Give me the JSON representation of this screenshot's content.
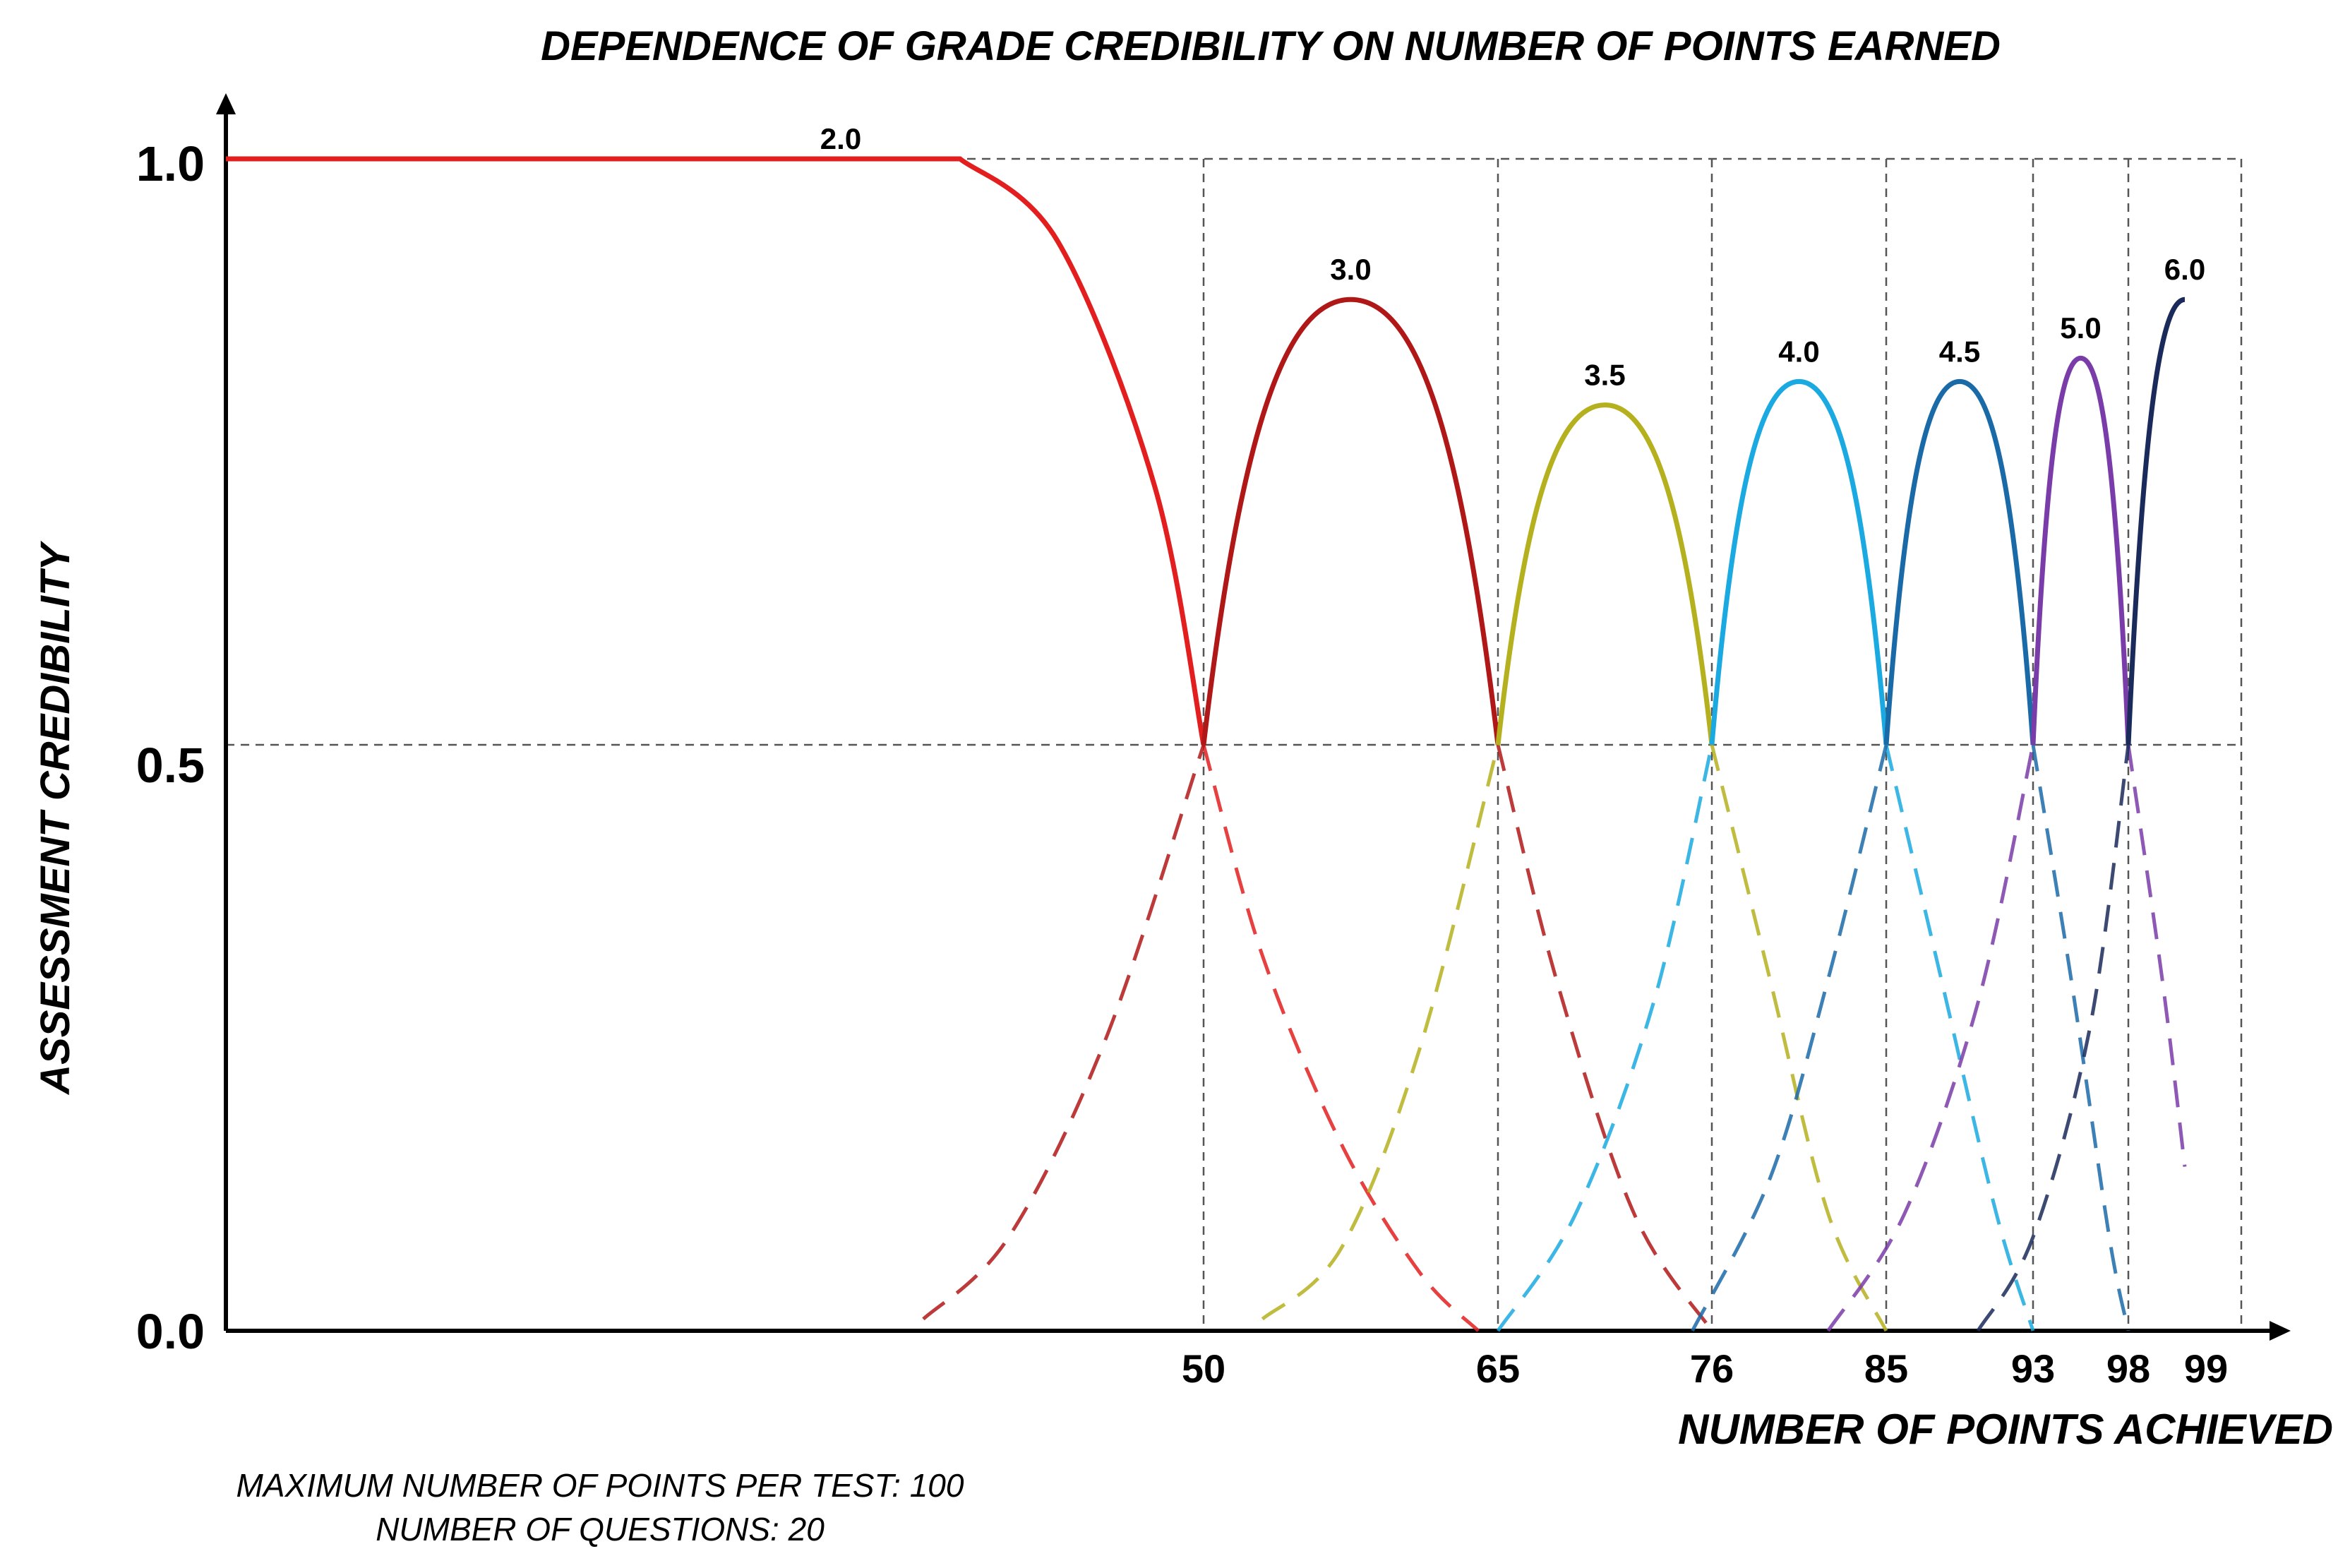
{
  "chart_data": {
    "type": "line",
    "title": "DEPENDENCE OF GRADE CREDIBILITY ON NUMBER OF POINTS EARNED",
    "xlabel": "NUMBER OF POINTS ACHIEVED",
    "ylabel": "ASSESSMENT CREDIBILITY",
    "y_ticks": [
      "1.0",
      "0.5",
      "0.0"
    ],
    "x_ticks": [
      "50",
      "65",
      "76",
      "85",
      "93",
      "98",
      "99"
    ],
    "ylim": [
      0,
      1
    ],
    "grid": "dashed at grade boundaries and y = 0.5, 1.0",
    "series": [
      {
        "name": "2.0",
        "color": "#e31e1e",
        "solid_x": [
          0,
          40,
          44,
          48,
          50
        ],
        "solid_y": [
          1.0,
          1.0,
          0.93,
          0.72,
          0.5
        ],
        "dashed_x": [
          50,
          53,
          57,
          61,
          64
        ],
        "dashed_y": [
          0.5,
          0.32,
          0.16,
          0.05,
          0.0
        ]
      },
      {
        "name": "3.0",
        "color": "#b01818",
        "peak_x": 57.5,
        "peak_y": 0.88,
        "left_x": 50,
        "right_x": 65,
        "dashed_left_x": [
          38,
          42,
          46,
          50
        ],
        "dashed_left_y": [
          0.01,
          0.08,
          0.25,
          0.5
        ],
        "dashed_right_x": [
          65,
          68,
          72,
          76
        ],
        "dashed_right_y": [
          0.5,
          0.3,
          0.1,
          0.0
        ]
      },
      {
        "name": "3.5",
        "color": "#b5b01e",
        "peak_x": 70.5,
        "peak_y": 0.79,
        "left_x": 65,
        "right_x": 76,
        "dashed_left_x": [
          53,
          57,
          61,
          65
        ],
        "dashed_left_y": [
          0.01,
          0.07,
          0.24,
          0.5
        ],
        "dashed_right_x": [
          76,
          79,
          82,
          85
        ],
        "dashed_right_y": [
          0.5,
          0.3,
          0.1,
          0.0
        ]
      },
      {
        "name": "4.0",
        "color": "#1aa9e0",
        "peak_x": 80.5,
        "peak_y": 0.81,
        "left_x": 76,
        "right_x": 85,
        "dashed_left_x": [
          65,
          69,
          73,
          76
        ],
        "dashed_left_y": [
          0.0,
          0.1,
          0.28,
          0.5
        ],
        "dashed_right_x": [
          85,
          88,
          91,
          93
        ],
        "dashed_right_y": [
          0.5,
          0.3,
          0.1,
          0.0
        ]
      },
      {
        "name": "4.5",
        "color": "#1a6aa8",
        "peak_x": 89,
        "peak_y": 0.81,
        "left_x": 85,
        "right_x": 93,
        "dashed_left_x": [
          75,
          79,
          82,
          85
        ],
        "dashed_left_y": [
          0.0,
          0.13,
          0.3,
          0.5
        ],
        "dashed_right_x": [
          93,
          95,
          97,
          98
        ],
        "dashed_right_y": [
          0.5,
          0.3,
          0.08,
          0.0
        ]
      },
      {
        "name": "5.0",
        "color": "#7a3ca8",
        "peak_x": 95.5,
        "peak_y": 0.83,
        "left_x": 93,
        "right_x": 98,
        "dashed_left_x": [
          82,
          86,
          90,
          93
        ],
        "dashed_left_y": [
          0.0,
          0.1,
          0.28,
          0.5
        ],
        "dashed_right_x": [
          98,
          98.6,
          99
        ],
        "dashed_right_y": [
          0.5,
          0.3,
          0.14
        ]
      },
      {
        "name": "6.0",
        "color": "#1a2a5a",
        "peak_x": 99,
        "peak_y": 0.88,
        "left_x": 98,
        "right_x": 99,
        "dashed_left_x": [
          90,
          93,
          96,
          98
        ],
        "dashed_left_y": [
          0.0,
          0.08,
          0.26,
          0.5
        ]
      }
    ],
    "annotations": {
      "max_points_note": "MAXIMUM NUMBER OF POINTS PER TEST: 100",
      "questions_note": "NUMBER OF QUESTIONS: 20"
    }
  }
}
